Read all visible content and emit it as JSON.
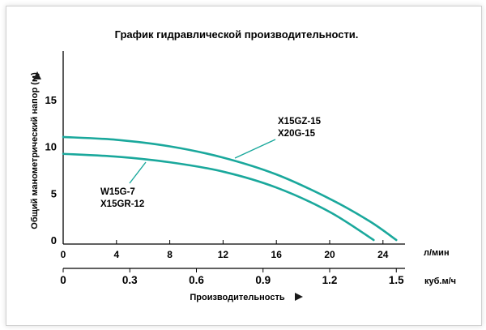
{
  "chart_data": {
    "type": "line",
    "title": "График гидравлической производительности.",
    "ylabel": "Общий манометрический напор (м)",
    "xlabel": "Производительность",
    "x_unit_primary": "л/мин",
    "x_unit_secondary": "куб.м/ч",
    "x_ticks_primary": [
      "0",
      "4",
      "8",
      "12",
      "16",
      "20",
      "24"
    ],
    "x_ticks_secondary": [
      "0",
      "0.3",
      "0.6",
      "0.9",
      "1.2",
      "1.5"
    ],
    "y_ticks": [
      "0",
      "5",
      "10",
      "15"
    ],
    "xlim": [
      0,
      27.5
    ],
    "ylim": [
      0,
      18
    ],
    "grid": false,
    "series_color": "#1aa89c",
    "series": [
      {
        "name": "X15GZ-15 / X20G-15",
        "labels": [
          "X15GZ-15",
          "X20G-15"
        ],
        "points": [
          [
            0,
            11.0
          ],
          [
            4,
            10.7
          ],
          [
            8,
            10.0
          ],
          [
            12,
            8.8
          ],
          [
            16,
            7.0
          ],
          [
            20,
            4.4
          ],
          [
            23,
            2.0
          ],
          [
            25,
            0
          ]
        ]
      },
      {
        "name": "W15G-7 / X15GR-12",
        "labels": [
          "W15G-7",
          "X15GR-12"
        ],
        "points": [
          [
            0,
            9.2
          ],
          [
            4,
            8.9
          ],
          [
            8,
            8.3
          ],
          [
            12,
            7.3
          ],
          [
            16,
            5.6
          ],
          [
            20,
            3.0
          ],
          [
            23.3,
            0
          ]
        ]
      }
    ]
  }
}
